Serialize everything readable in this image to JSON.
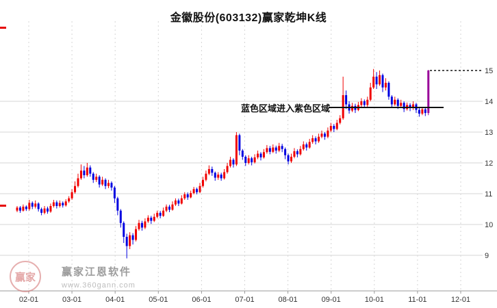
{
  "annotation": {
    "text": "蓝色区域进入紫色区域"
  },
  "watermark": {
    "logo_chars": "赢家",
    "brand": "赢家江恩软件",
    "site": "www.360gann.com"
  },
  "chart_data": {
    "type": "candlestick",
    "title": "金徽股份(603132)赢家乾坤K线",
    "x_axis": {
      "labels": [
        "02-01",
        "03-01",
        "04-01",
        "05-01",
        "06-01",
        "07-01",
        "08-01",
        "09-01",
        "10-01",
        "11-01",
        "12-01"
      ]
    },
    "y_axis": {
      "labels": [
        15,
        14,
        13,
        12,
        11,
        10,
        9
      ],
      "gridline_values": [
        14,
        13,
        12,
        11,
        10,
        9
      ],
      "range": [
        7.8,
        15.7
      ]
    },
    "colors": {
      "up": "#f00000",
      "down": "#0000e0",
      "highlight": "#990099",
      "grid": "#d5d5d5",
      "axis": "#999999",
      "text": "#333333",
      "overlay_line": "#111111"
    },
    "highlight_candle_index": 135,
    "overlays": {
      "horizontal_line": {
        "price": 13.8
      },
      "dotted_target_line": {
        "price": 15.0
      }
    },
    "candles": [
      [
        10.45,
        10.55,
        10.4,
        10.6
      ],
      [
        10.55,
        10.45,
        10.38,
        10.6
      ],
      [
        10.45,
        10.58,
        10.42,
        10.65
      ],
      [
        10.58,
        10.5,
        10.44,
        10.62
      ],
      [
        10.5,
        10.7,
        10.45,
        10.8
      ],
      [
        10.7,
        10.58,
        10.5,
        10.75
      ],
      [
        10.58,
        10.68,
        10.52,
        10.78
      ],
      [
        10.68,
        10.5,
        10.42,
        10.72
      ],
      [
        10.5,
        10.38,
        10.3,
        10.55
      ],
      [
        10.38,
        10.52,
        10.33,
        10.6
      ],
      [
        10.52,
        10.42,
        10.35,
        10.58
      ],
      [
        10.42,
        10.6,
        10.38,
        10.68
      ],
      [
        10.6,
        10.72,
        10.55,
        10.8
      ],
      [
        10.72,
        10.6,
        10.52,
        10.78
      ],
      [
        10.6,
        10.7,
        10.55,
        10.78
      ],
      [
        10.7,
        10.62,
        10.55,
        10.75
      ],
      [
        10.62,
        10.75,
        10.58,
        10.82
      ],
      [
        10.75,
        10.85,
        10.7,
        10.92
      ],
      [
        10.85,
        11.05,
        10.8,
        11.15
      ],
      [
        11.05,
        11.25,
        11.0,
        11.4
      ],
      [
        11.25,
        11.5,
        11.2,
        11.65
      ],
      [
        11.5,
        11.75,
        11.45,
        11.95
      ],
      [
        11.75,
        11.6,
        11.5,
        11.9
      ],
      [
        11.6,
        11.85,
        11.55,
        12.0
      ],
      [
        11.85,
        11.65,
        11.55,
        11.92
      ],
      [
        11.65,
        11.45,
        11.35,
        11.7
      ],
      [
        11.45,
        11.55,
        11.38,
        11.65
      ],
      [
        11.55,
        11.3,
        11.2,
        11.6
      ],
      [
        11.3,
        11.45,
        11.25,
        11.55
      ],
      [
        11.45,
        11.25,
        11.15,
        11.5
      ],
      [
        11.25,
        11.35,
        11.18,
        11.45
      ],
      [
        11.35,
        11.2,
        11.1,
        11.4
      ],
      [
        11.2,
        10.85,
        10.7,
        11.25
      ],
      [
        10.85,
        10.45,
        10.3,
        10.9
      ],
      [
        10.45,
        10.05,
        9.9,
        10.5
      ],
      [
        10.05,
        9.6,
        9.4,
        10.1
      ],
      [
        9.6,
        9.3,
        8.9,
        9.7
      ],
      [
        9.3,
        9.65,
        9.2,
        9.75
      ],
      [
        9.65,
        9.5,
        9.35,
        9.72
      ],
      [
        9.5,
        9.85,
        9.45,
        9.95
      ],
      [
        9.85,
        10.05,
        9.8,
        10.15
      ],
      [
        10.05,
        9.9,
        9.8,
        10.12
      ],
      [
        9.9,
        10.1,
        9.85,
        10.2
      ],
      [
        10.1,
        10.22,
        10.05,
        10.3
      ],
      [
        10.22,
        10.12,
        10.02,
        10.28
      ],
      [
        10.12,
        10.25,
        10.08,
        10.35
      ],
      [
        10.25,
        10.38,
        10.2,
        10.45
      ],
      [
        10.38,
        10.28,
        10.2,
        10.44
      ],
      [
        10.28,
        10.45,
        10.25,
        10.55
      ],
      [
        10.45,
        10.58,
        10.4,
        10.65
      ],
      [
        10.58,
        10.48,
        10.4,
        10.64
      ],
      [
        10.48,
        10.65,
        10.45,
        10.75
      ],
      [
        10.65,
        10.78,
        10.6,
        10.85
      ],
      [
        10.78,
        10.68,
        10.6,
        10.84
      ],
      [
        10.68,
        10.85,
        10.65,
        10.95
      ],
      [
        10.85,
        10.98,
        10.8,
        11.05
      ],
      [
        10.98,
        10.88,
        10.8,
        11.04
      ],
      [
        10.88,
        11.02,
        10.85,
        11.1
      ],
      [
        11.02,
        11.15,
        10.98,
        11.22
      ],
      [
        11.15,
        11.05,
        10.98,
        11.2
      ],
      [
        11.05,
        11.25,
        11.02,
        11.35
      ],
      [
        11.25,
        11.45,
        11.2,
        11.55
      ],
      [
        11.45,
        11.65,
        11.4,
        11.75
      ],
      [
        11.65,
        11.8,
        11.6,
        11.92
      ],
      [
        11.8,
        11.68,
        11.58,
        11.88
      ],
      [
        11.68,
        11.52,
        11.42,
        11.72
      ],
      [
        11.52,
        11.62,
        11.45,
        11.7
      ],
      [
        11.62,
        11.5,
        11.42,
        11.68
      ],
      [
        11.5,
        11.7,
        11.46,
        11.8
      ],
      [
        11.7,
        11.9,
        11.65,
        12.0
      ],
      [
        11.9,
        12.1,
        11.85,
        12.2
      ],
      [
        12.1,
        11.95,
        11.85,
        12.15
      ],
      [
        11.95,
        12.9,
        11.9,
        13.0
      ],
      [
        12.9,
        12.4,
        12.25,
        12.95
      ],
      [
        12.4,
        12.2,
        12.1,
        12.45
      ],
      [
        12.2,
        12.0,
        11.9,
        12.25
      ],
      [
        12.0,
        12.15,
        11.95,
        12.25
      ],
      [
        12.15,
        12.02,
        11.92,
        12.2
      ],
      [
        12.02,
        12.18,
        11.98,
        12.28
      ],
      [
        12.18,
        12.3,
        12.12,
        12.4
      ],
      [
        12.3,
        12.18,
        12.08,
        12.35
      ],
      [
        12.18,
        12.35,
        12.14,
        12.45
      ],
      [
        12.35,
        12.48,
        12.3,
        12.58
      ],
      [
        12.48,
        12.36,
        12.28,
        12.55
      ],
      [
        12.36,
        12.5,
        12.32,
        12.6
      ],
      [
        12.5,
        12.4,
        12.3,
        12.56
      ],
      [
        12.4,
        12.55,
        12.35,
        12.65
      ],
      [
        12.55,
        12.45,
        12.35,
        12.62
      ],
      [
        12.45,
        12.25,
        12.12,
        12.5
      ],
      [
        12.25,
        12.05,
        11.95,
        12.3
      ],
      [
        12.05,
        12.2,
        12.0,
        12.3
      ],
      [
        12.2,
        12.38,
        12.15,
        12.48
      ],
      [
        12.38,
        12.28,
        12.18,
        12.44
      ],
      [
        12.28,
        12.45,
        12.24,
        12.55
      ],
      [
        12.45,
        12.6,
        12.4,
        12.7
      ],
      [
        12.6,
        12.5,
        12.4,
        12.66
      ],
      [
        12.5,
        12.68,
        12.46,
        12.78
      ],
      [
        12.68,
        12.8,
        12.62,
        12.9
      ],
      [
        12.8,
        12.7,
        12.6,
        12.86
      ],
      [
        12.7,
        12.85,
        12.65,
        12.95
      ],
      [
        12.85,
        12.95,
        12.8,
        13.05
      ],
      [
        12.95,
        12.85,
        12.75,
        13.0
      ],
      [
        12.85,
        13.05,
        12.8,
        13.15
      ],
      [
        13.05,
        13.2,
        13.0,
        13.3
      ],
      [
        13.2,
        13.1,
        13.0,
        13.26
      ],
      [
        13.1,
        13.3,
        13.06,
        13.4
      ],
      [
        13.3,
        13.45,
        13.25,
        13.55
      ],
      [
        13.45,
        14.2,
        13.4,
        14.8
      ],
      [
        14.2,
        13.9,
        13.75,
        14.35
      ],
      [
        13.9,
        13.7,
        13.6,
        14.0
      ],
      [
        13.7,
        13.85,
        13.65,
        13.95
      ],
      [
        13.85,
        13.72,
        13.62,
        13.92
      ],
      [
        13.72,
        13.88,
        13.68,
        13.98
      ],
      [
        13.88,
        14.0,
        13.82,
        14.1
      ],
      [
        14.0,
        13.88,
        13.78,
        14.06
      ],
      [
        13.88,
        14.05,
        13.82,
        14.15
      ],
      [
        14.05,
        14.45,
        14.0,
        14.6
      ],
      [
        14.45,
        14.8,
        14.4,
        15.05
      ],
      [
        14.8,
        14.55,
        14.4,
        14.95
      ],
      [
        14.55,
        14.85,
        14.5,
        15.0
      ],
      [
        14.85,
        14.45,
        14.3,
        14.9
      ],
      [
        14.45,
        14.6,
        14.35,
        14.75
      ],
      [
        14.6,
        14.15,
        14.05,
        14.65
      ],
      [
        14.15,
        13.9,
        13.8,
        14.2
      ],
      [
        13.9,
        14.05,
        13.85,
        14.15
      ],
      [
        14.05,
        13.85,
        13.75,
        14.1
      ],
      [
        13.85,
        13.95,
        13.78,
        14.05
      ],
      [
        13.95,
        13.75,
        13.65,
        14.0
      ],
      [
        13.75,
        13.88,
        13.7,
        13.96
      ],
      [
        13.88,
        13.78,
        13.68,
        13.94
      ],
      [
        13.78,
        13.9,
        13.72,
        14.0
      ],
      [
        13.9,
        13.72,
        13.62,
        13.95
      ],
      [
        13.72,
        13.6,
        13.5,
        13.78
      ],
      [
        13.6,
        13.74,
        13.55,
        13.82
      ],
      [
        13.74,
        13.62,
        13.52,
        13.8
      ],
      [
        13.62,
        15.0,
        13.55,
        15.02
      ]
    ]
  }
}
